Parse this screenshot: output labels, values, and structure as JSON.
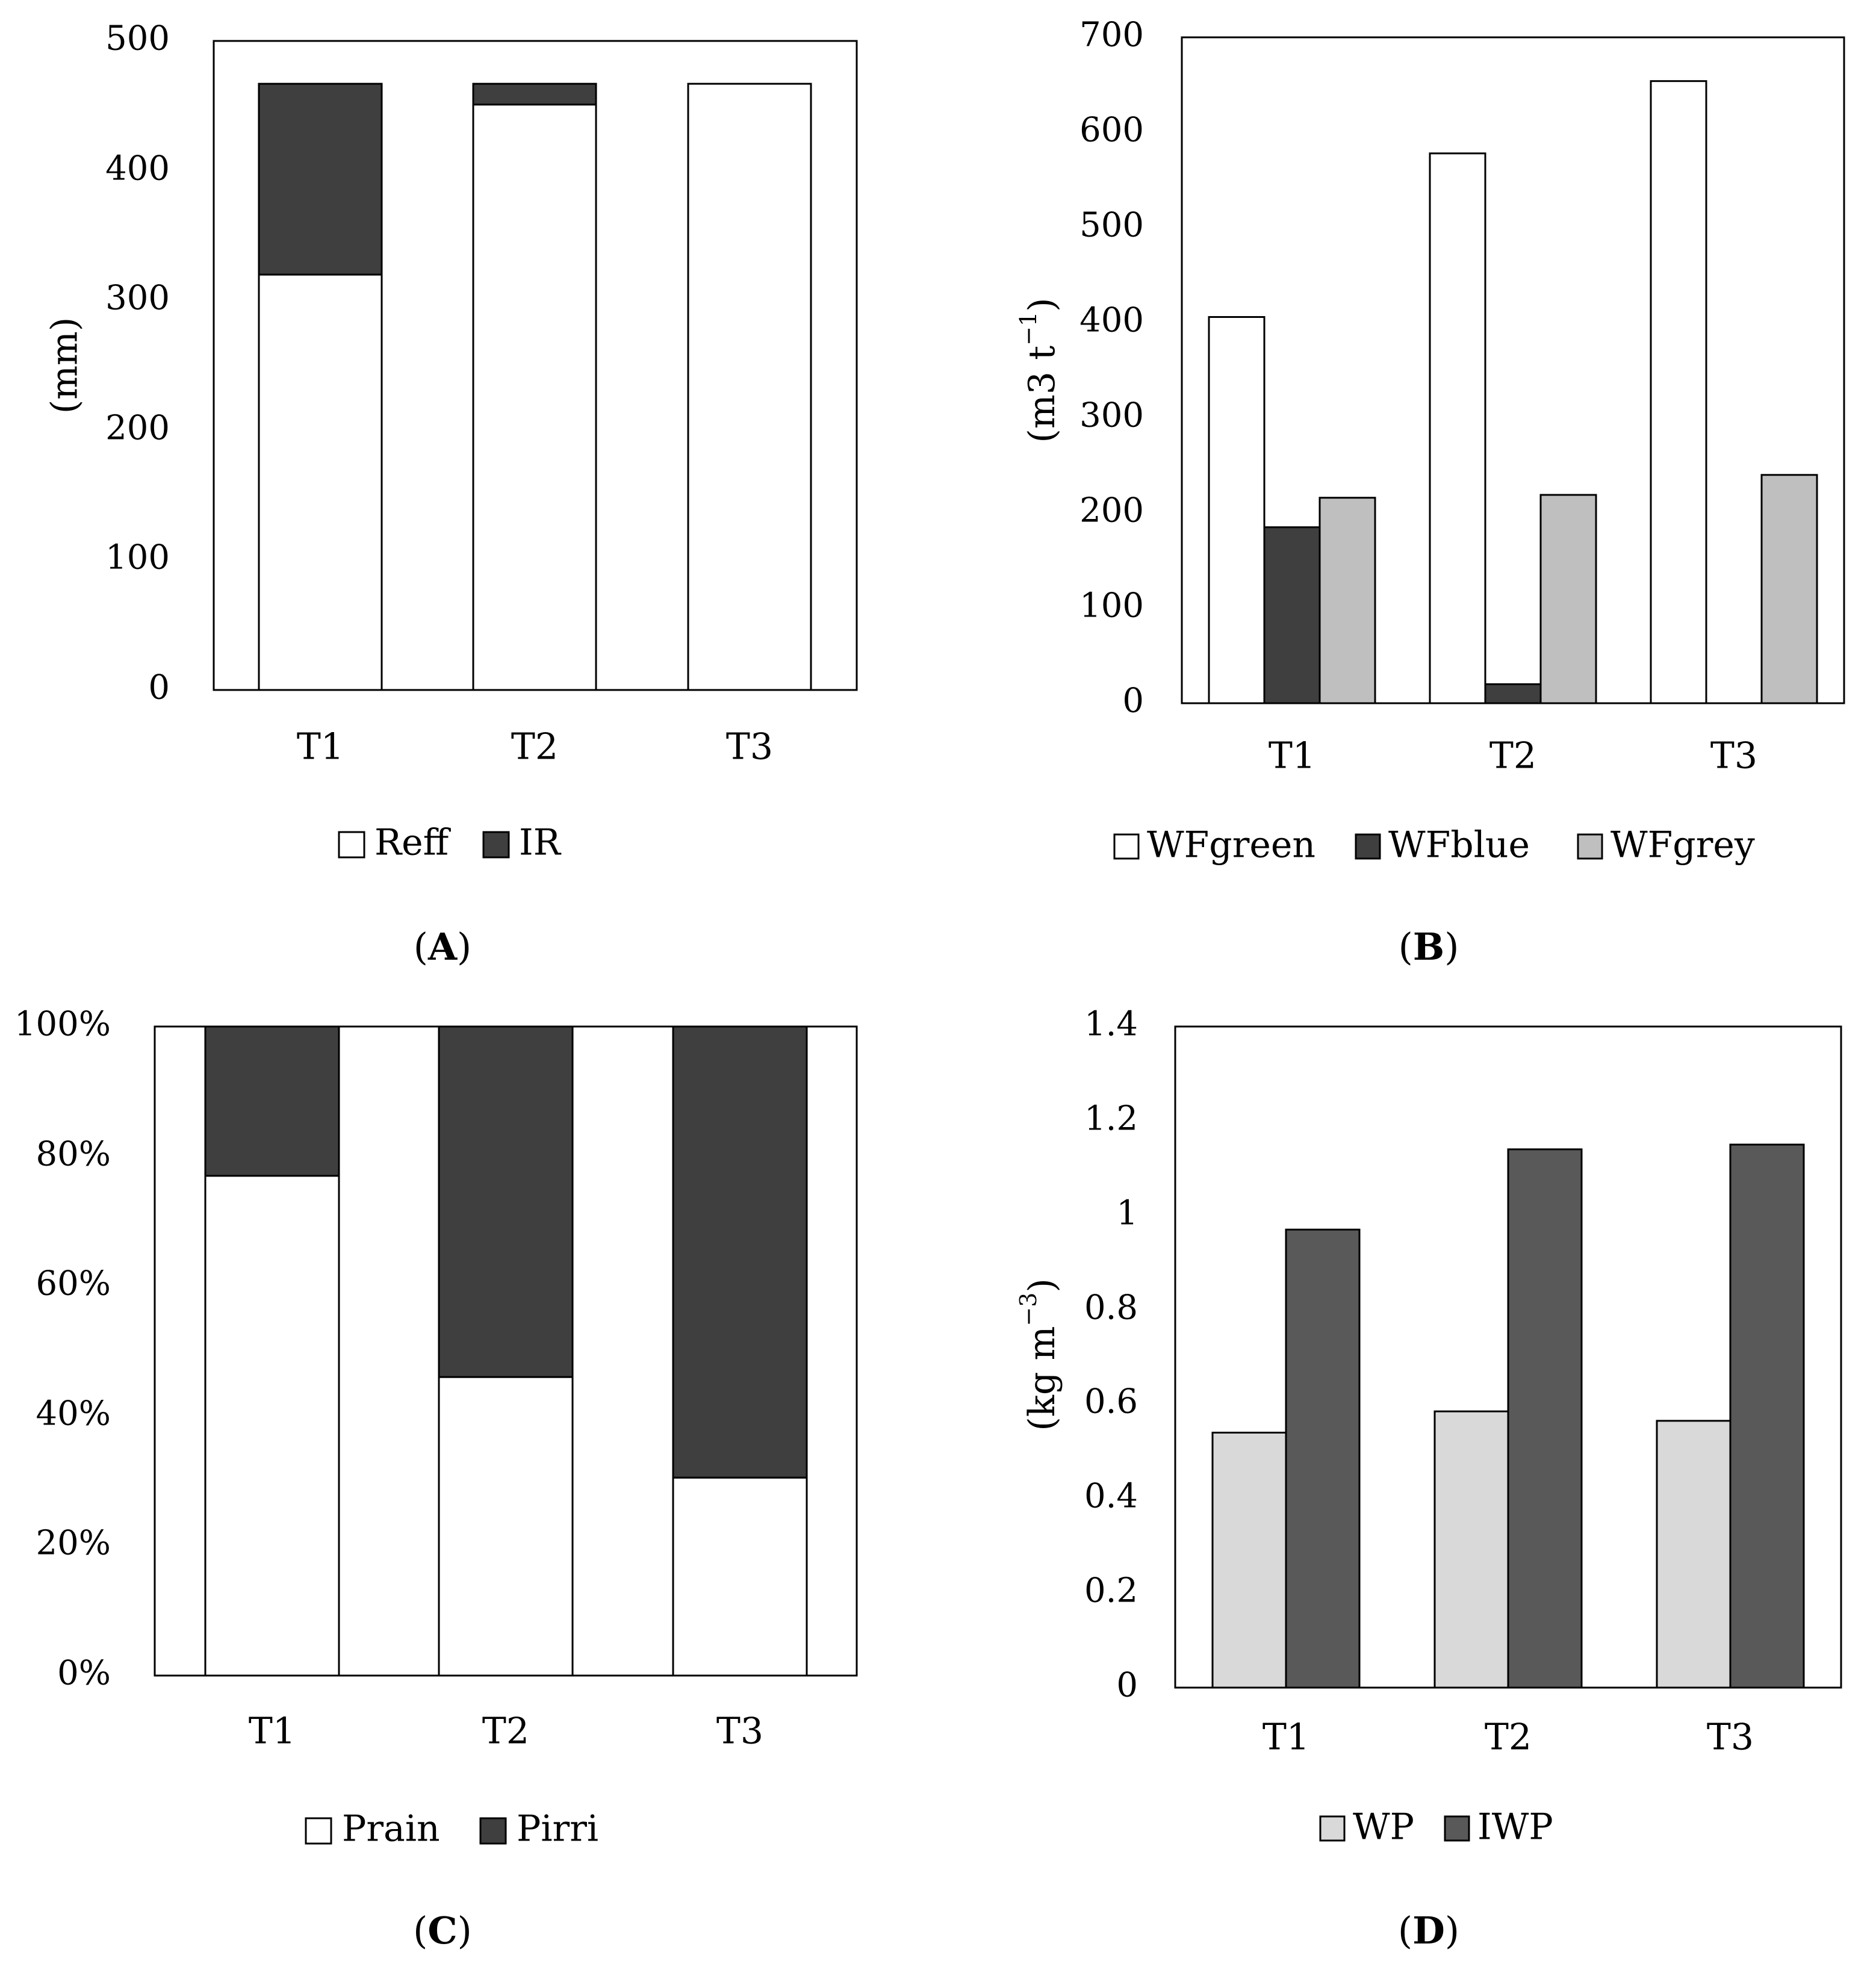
{
  "chart_data": [
    {
      "panel": "A",
      "type": "bar",
      "stacked": true,
      "categories": [
        "T1",
        "T2",
        "T3"
      ],
      "series": [
        {
          "name": "Reff",
          "values": [
            320,
            451,
            467
          ]
        },
        {
          "name": "IR",
          "values": [
            147,
            16,
            0
          ]
        }
      ],
      "ylabel": "(mm)",
      "ylim": [
        0,
        500
      ],
      "yticks": [
        "0",
        "100",
        "200",
        "300",
        "400",
        "500"
      ],
      "panel_label": {
        "open": "(",
        "letter": "A",
        "close": ")"
      }
    },
    {
      "panel": "B",
      "type": "bar",
      "stacked": false,
      "categories": [
        "T1",
        "T2",
        "T3"
      ],
      "series": [
        {
          "name": "WFgreen",
          "values": [
            406,
            578,
            654
          ]
        },
        {
          "name": "WFblue",
          "values": [
            185,
            20,
            0
          ]
        },
        {
          "name": "WFgrey",
          "values": [
            216,
            219,
            240
          ]
        }
      ],
      "ylabel": {
        "base": "(m3 t",
        "sup": "−1",
        "end": ")"
      },
      "ylim": [
        0,
        700
      ],
      "yticks": [
        "0",
        "100",
        "200",
        "300",
        "400",
        "500",
        "600",
        "700"
      ],
      "panel_label": {
        "open": "(",
        "letter": "B",
        "close": ")"
      }
    },
    {
      "panel": "C",
      "type": "bar",
      "stacked": true,
      "percent": true,
      "categories": [
        "T1",
        "T2",
        "T3"
      ],
      "series": [
        {
          "name": "Prain",
          "values": [
            77,
            46,
            30.5
          ]
        },
        {
          "name": "Pirri",
          "values": [
            23,
            54,
            69.5
          ]
        }
      ],
      "ylim": [
        0,
        100
      ],
      "yticks": [
        "0%",
        "20%",
        "40%",
        "60%",
        "80%",
        "100%"
      ],
      "panel_label": {
        "open": "(",
        "letter": "C",
        "close": ")"
      }
    },
    {
      "panel": "D",
      "type": "bar",
      "stacked": false,
      "categories": [
        "T1",
        "T2",
        "T3"
      ],
      "series": [
        {
          "name": "WP",
          "values": [
            0.54,
            0.585,
            0.565
          ]
        },
        {
          "name": "IWP",
          "values": [
            0.97,
            1.14,
            1.15
          ]
        }
      ],
      "ylabel": {
        "base": "(kg m",
        "sup": "−3",
        "end": ")"
      },
      "ylim": [
        0,
        1.4
      ],
      "yticks": [
        "0",
        "0.2",
        "0.4",
        "0.6",
        "0.8",
        "1",
        "1.2",
        "1.4"
      ],
      "panel_label": {
        "open": "(",
        "letter": "D",
        "close": ")"
      }
    }
  ],
  "colors": {
    "white": "#ffffff",
    "dark": "#3f3f3f",
    "mid": "#595959",
    "grey": "#bfbfbf",
    "light": "#d9d9d9",
    "stroke": "#000000"
  }
}
